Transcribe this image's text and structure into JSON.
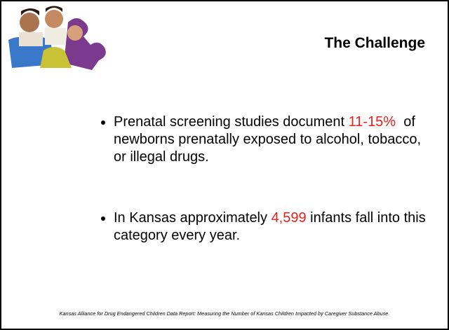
{
  "header": {
    "title": "The Challenge"
  },
  "bullets": [
    [
      "Prenatal screening studies document ",
      "11-15%",
      "  of newborns prenatally exposed to alcohol, tobacco, or illegal drugs."
    ],
    [
      "In Kansas approximately ",
      "4,599",
      " infants fall into this category every year."
    ]
  ],
  "footnote": "Kansas Alliance for Drug Endangered Children Data Report: Measuring the Number of Kansas Children Impacted by Caregiver Substance Abuse."
}
